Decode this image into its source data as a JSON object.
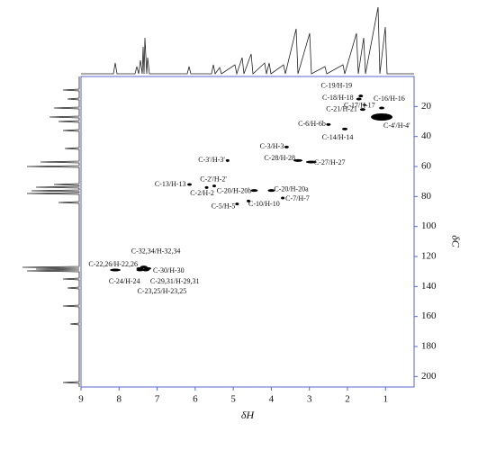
{
  "chart_data": {
    "type": "scatter",
    "x_label": "δH",
    "y_label": "δC",
    "xlim": [
      9,
      0.25
    ],
    "ylim": [
      0,
      207
    ],
    "xticks": [
      9,
      8,
      7,
      6,
      5,
      4,
      3,
      2,
      1
    ],
    "yticks": [
      20,
      40,
      60,
      80,
      100,
      120,
      140,
      160,
      180,
      200
    ],
    "color": "#000000",
    "labels": [
      "C-19/H-19",
      "C-18/H-18",
      "C-17/H-17",
      "C-16/H-16",
      "C-21/H-21",
      "C-4'/H-4'",
      "C-6/H-6b",
      "C-14/H-14",
      "C-3/H-3",
      "C-28/H-28",
      "C-27/H-27",
      "C-3'/H-3'",
      "C-13/H-13",
      "C-2'/H-2'",
      "C-2/H-2",
      "C-20/H-20b",
      "C-20/H-20a",
      "C-7/H-7",
      "C-10/H-10",
      "C-5/H-5",
      "C-32,34/H-32,34",
      "C-22,26/H-22,26",
      "C-30/H-30",
      "C-24/H-24",
      "C-29,31/H-29,31",
      "C-23,25/H-23,25"
    ],
    "x": [
      1.65,
      1.7,
      1.55,
      1.1,
      1.6,
      1.1,
      2.5,
      2.07,
      3.6,
      3.3,
      2.95,
      5.15,
      6.15,
      5.5,
      5.7,
      4.45,
      4.0,
      3.7,
      4.6,
      4.9,
      7.35,
      8.1,
      7.25,
      7.45,
      7.3,
      7.45
    ],
    "values": [
      13,
      15,
      19,
      21,
      22,
      27,
      32,
      35,
      47,
      56,
      57,
      56,
      72,
      73,
      74,
      76,
      76,
      81,
      83,
      85,
      127,
      129,
      128,
      129,
      129,
      128
    ]
  }
}
